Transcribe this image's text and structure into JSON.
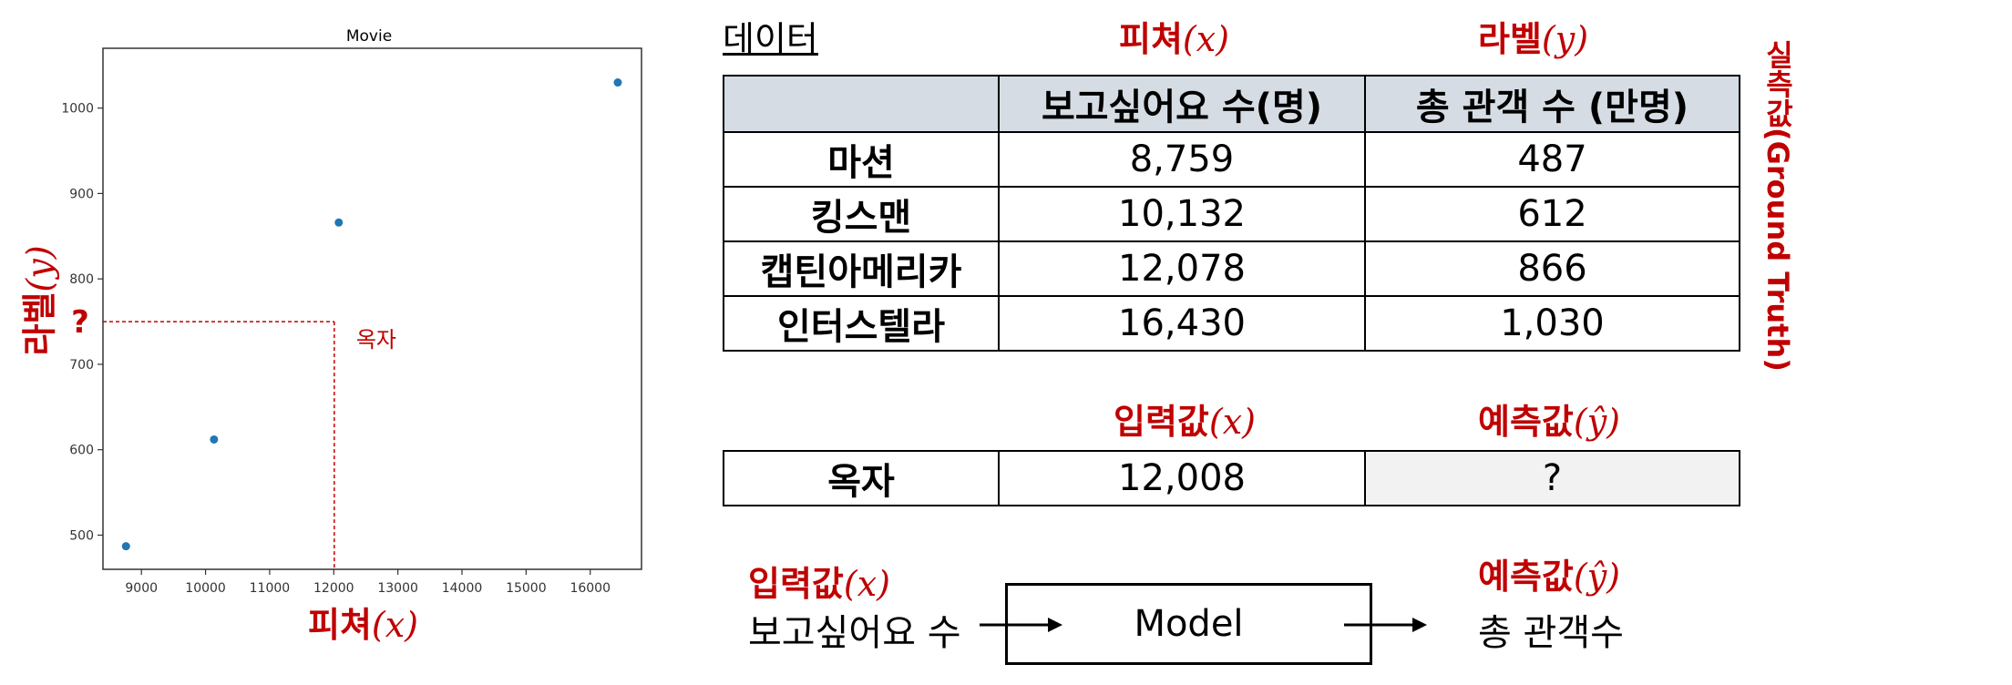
{
  "chart_data": {
    "type": "scatter",
    "title": "Movie",
    "points": [
      {
        "x": 8759,
        "y": 487
      },
      {
        "x": 10132,
        "y": 612
      },
      {
        "x": 12078,
        "y": 866
      },
      {
        "x": 16430,
        "y": 1030
      }
    ],
    "xlim": [
      8400,
      16800
    ],
    "ylim": [
      460,
      1070
    ],
    "xticks": [
      9000,
      10000,
      11000,
      12000,
      13000,
      14000,
      15000,
      16000
    ],
    "yticks": [
      500,
      600,
      700,
      800,
      900,
      1000
    ],
    "query": {
      "x": 12008,
      "y": 750,
      "label": "옥자",
      "marker": "?"
    },
    "xlabel": {
      "text": "피쳐",
      "math": "(x)"
    },
    "ylabel": {
      "text": "라벨",
      "math": "(y)"
    },
    "point_color": "#1f77b4",
    "guide_color": "#c00000",
    "grid": false
  },
  "headings": {
    "data_title": "데이터",
    "feature": {
      "text": "피쳐",
      "math": "(x)"
    },
    "label": {
      "text": "라벨",
      "math": "(y)"
    },
    "ground_truth": "실측값(Ground Truth)",
    "input": {
      "text": "입력값",
      "math": "(x)"
    },
    "prediction": {
      "text": "예측값",
      "math": "(ŷ)"
    }
  },
  "data_table": {
    "columns": [
      "",
      "보고싶어요 수(명)",
      "총 관객 수 (만명)"
    ],
    "rows": [
      {
        "name": "마션",
        "want": "8,759",
        "viewers": "487"
      },
      {
        "name": "킹스맨",
        "want": "10,132",
        "viewers": "612"
      },
      {
        "name": "캡틴아메리카",
        "want": "12,078",
        "viewers": "866"
      },
      {
        "name": "인터스텔라",
        "want": "16,430",
        "viewers": "1,030"
      }
    ]
  },
  "query_table": {
    "name": "옥자",
    "want": "12,008",
    "viewers": "?"
  },
  "model_diagram": {
    "input_title": {
      "text": "입력값",
      "math": "(x)"
    },
    "input_text": "보고싶어요 수",
    "model_label": "Model",
    "output_title": {
      "text": "예측값",
      "math": "(ŷ)"
    },
    "output_text": "총 관객수"
  },
  "colors": {
    "accent": "#c00000",
    "header_fill": "#d6dce4",
    "unknown_fill": "#f2f2f2"
  }
}
